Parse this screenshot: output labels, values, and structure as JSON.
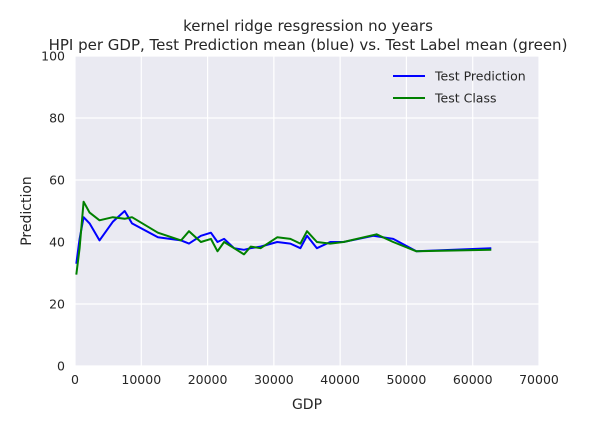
{
  "chart_data": {
    "type": "line",
    "title_line1": "kernel ridge resgression no years",
    "title_line2": "HPI per GDP, Test Prediction mean (blue) vs. Test Label mean (green)",
    "xlabel": "GDP",
    "ylabel": "Prediction",
    "xlim": [
      0,
      70000
    ],
    "ylim": [
      0,
      100
    ],
    "xticks": [
      0,
      10000,
      20000,
      30000,
      40000,
      50000,
      60000,
      70000
    ],
    "yticks": [
      0,
      20,
      40,
      60,
      80,
      100
    ],
    "grid": true,
    "legend_position": "top-right",
    "series": [
      {
        "name": "Test Prediction",
        "color": "#0000ff",
        "x": [
          200,
          700,
          1300,
          2200,
          3700,
          5700,
          7500,
          8600,
          12500,
          16000,
          17200,
          19000,
          20500,
          21500,
          22500,
          24000,
          25500,
          26500,
          28000,
          30500,
          32500,
          34000,
          35000,
          36500,
          38500,
          40500,
          45000,
          48000,
          51500,
          62800
        ],
        "y": [
          33,
          41,
          48,
          46,
          40.5,
          46.5,
          50,
          46,
          41.5,
          40.5,
          39.5,
          42,
          43,
          40,
          41,
          38,
          37.5,
          38,
          38.5,
          40,
          39.5,
          38,
          42,
          38,
          40,
          40,
          42,
          41,
          37,
          38
        ]
      },
      {
        "name": "Test Class",
        "color": "#008000",
        "x": [
          200,
          700,
          1300,
          2200,
          3700,
          5700,
          7500,
          8600,
          12500,
          16000,
          17200,
          19000,
          20500,
          21500,
          22500,
          24000,
          25500,
          26500,
          28000,
          30500,
          32500,
          34000,
          35000,
          36500,
          38500,
          40500,
          45500,
          48000,
          51500,
          62800
        ],
        "y": [
          29.5,
          38,
          53,
          49.5,
          47,
          48,
          47.5,
          48,
          43,
          40.5,
          43.5,
          40,
          41,
          37,
          40,
          38,
          36,
          38.5,
          38,
          41.5,
          41,
          39.5,
          43.5,
          40,
          39.5,
          40,
          42.5,
          40,
          37,
          37.5
        ]
      }
    ]
  }
}
